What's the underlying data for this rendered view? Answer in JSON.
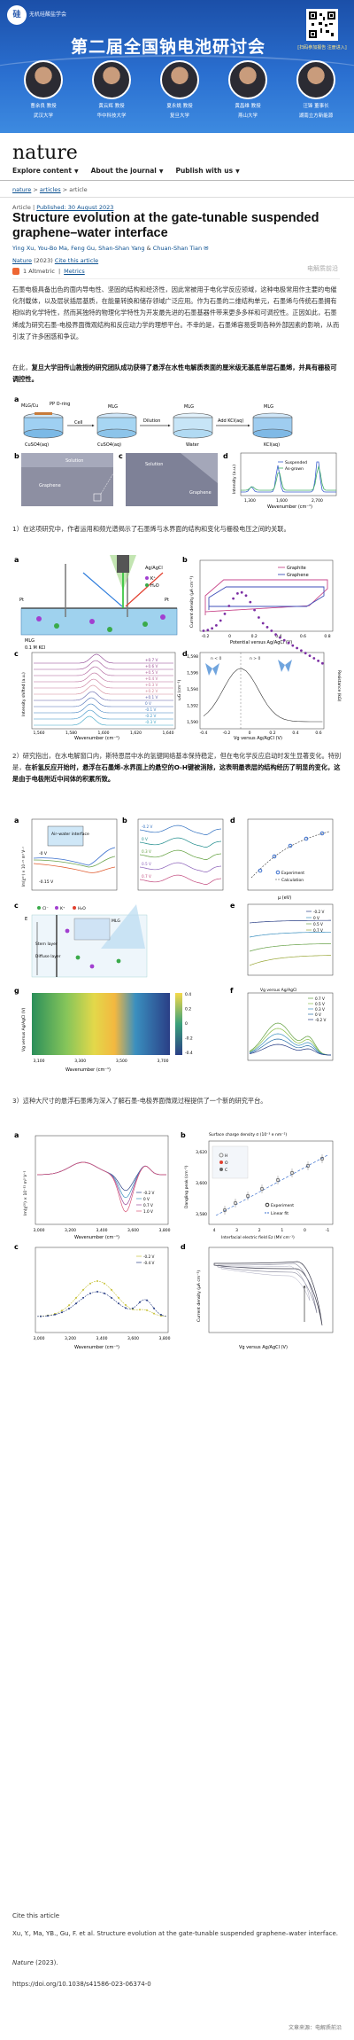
{
  "banner": {
    "org": "无机硅酸盐学会",
    "title": "第二届全国钠电池研讨会",
    "qr_caption": "[扫码参加报告 注册进入]",
    "speakers": [
      {
        "name": "曹余良 教授",
        "affiliation": "武汉大学"
      },
      {
        "name": "黄云辉 教授",
        "affiliation": "华中科技大学"
      },
      {
        "name": "夏永姚 教授",
        "affiliation": "复旦大学"
      },
      {
        "name": "黄昌维 教授",
        "affiliation": "燕山大学"
      },
      {
        "name": "汪锋 董事长",
        "affiliation": "湖南立方新能源"
      }
    ]
  },
  "nature": {
    "logo": "nature",
    "nav": [
      "Explore content",
      "About the journal",
      "Publish with us"
    ],
    "breadcrumbs": [
      "nature",
      "articles",
      "article"
    ],
    "article_type": "Article",
    "published": "Published: 30 August 2023",
    "title": "Structure evolution at the gate-tunable suspended graphene–water interface",
    "authors": [
      "Ying Xu",
      "You-Bo Ma",
      "Feng Gu",
      "Shan-Shan Yang",
      "Chuan-Shan Tian"
    ],
    "journal": "Nature",
    "year": "(2023)",
    "cite_link": "Cite this article",
    "altmetric": "1  Altmetric",
    "metrics": "Metrics",
    "watermark": "电解质前沿"
  },
  "paragraphs": {
    "p1": "石墨电极具备出色的面内导电性、坚固的结构和经济性，因此常被用于电化学反应领域，这种电极常用作主要的电催化剂载体，以及层状插层基质，在能量转换和储存领域广泛应用。作为石墨的二维结构单元，石墨烯与传统石墨拥有相似的化学特性，然而其独特的物理化学特性为开发最先进的石墨基器件带来更多多样和可调控性。正因如此，石墨烯成为研究石墨-电极界面微观结构和反应动力学的理想平台。不幸的是，石墨烯容易受到各种外部因素的影响，从而引发了许多困惑和争议。",
    "p2_normal": "在此，",
    "p2_bold": "复旦大学田传山教授的研究团队成功获得了悬浮在水性电解质表面的厘米级无基底单层石墨烯，并具有栅极可调控性。",
    "p3": "1）在这项研究中，作者运用和频光谱揭示了石墨烯与水界面的结构和变化与栅极电压之间的关联。",
    "p4_normal": "2）研究指出，在水电解窗口内，斯特恩层中水的氢键网络基本保持稳定，但在电化学反应启动时发生显著变化。特别是，",
    "p4_bold": "在析氢反应开始时，悬浮在石墨烯-水界面上的悬空的O-H键被消除，这表明最表层的结构经历了明显的变化，这是由于电极附近中间体的积累所致。",
    "p5": "3）這种大尺寸的悬浮石墨烯为深入了解石墨-电极界面微观过程提供了一个新的研究平台。"
  },
  "fig1": {
    "a_labels": [
      "MLG/Cu",
      "PP O-ring",
      "CuSO4(aq)",
      "Cell",
      "CuSO4(aq)",
      "MLG",
      "Dilution",
      "MLG",
      "Water",
      "Add KCl(aq)",
      "MLG",
      "KCl(aq)"
    ],
    "b_labels": [
      "Solution",
      "Graphene"
    ],
    "c_labels": [
      "Solution",
      "Graphene"
    ],
    "d_legend": [
      "Suspended",
      "As-grown"
    ],
    "d_xlabel": "Wavenumber (cm⁻¹)",
    "d_ylabel": "Intensity (a.u.)",
    "d_xticks": [
      "1,300",
      "1,600",
      "2,700"
    ],
    "d_peaks": [
      "D",
      "G",
      "2D"
    ]
  },
  "fig2": {
    "a_labels": [
      "Pt",
      "Ag/AgCl",
      "Pt",
      "MLG",
      "0.1 M KCl",
      "K⁺",
      "H₂O",
      "Cl⁻"
    ],
    "b_legend": [
      "Graphite",
      "Graphene"
    ],
    "b_xlabel": "Potential versus Ag/AgCl (V)",
    "b_ylabel": "Current density (μA cm⁻²)",
    "b_xticks": [
      "-0.2",
      "0",
      "0.2",
      "0.4",
      "0.6",
      "0.8"
    ],
    "c_xlabel": "Wavenumber (cm⁻¹)",
    "c_ylabel": "Intensity shifted (a.u.)",
    "c_xticks": [
      "1,560",
      "1,580",
      "1,600",
      "1,620",
      "1,640"
    ],
    "c_curves": [
      "+0.7 V",
      "+0.6 V",
      "+0.5 V",
      "+0.4 V",
      "+0.3 V",
      "+0.2 V",
      "+0.1 V",
      "0 V",
      "-0.1 V",
      "-0.2 V",
      "-0.3 V"
    ],
    "d_xlabel": "Vg versus Ag/AgCl (V)",
    "d_ylabel": "ωG (cm⁻¹)",
    "d_y2label": "Resistance (kΩ)",
    "d_xticks": [
      "-0.4",
      "-0.2",
      "0",
      "0.2",
      "0.4",
      "0.6"
    ],
    "d_yticks": [
      "1,590",
      "1,592",
      "1,594",
      "1,596",
      "1,598"
    ],
    "d_annot": [
      "n < 0",
      "n > 0"
    ]
  },
  "fig3": {
    "a_labels": [
      "Air–water interface",
      "-0 V",
      "-0.15 V"
    ],
    "a_ylabel": "Im(χ⁽²⁾) × 10⁻²¹ m² V⁻¹",
    "b_curves": [
      "-0.2 V",
      "0 V",
      "0.3 V",
      "0.5 V",
      "0.7 V"
    ],
    "d_legend": [
      "Experiment",
      "Calculation"
    ],
    "d_xlabel": "μ (eV)",
    "e_curves": [
      "-0.2 V",
      "0 V",
      "0.5 V",
      "0.7 V"
    ],
    "e_labels": [
      "Stern layer",
      "Diffuse layer",
      "Cl⁻",
      "K⁺",
      "H₂O",
      "MLG",
      "E"
    ],
    "f_curves": [
      "0.7 V",
      "0.5 V",
      "0.3 V",
      "0 V",
      "-0.2 V"
    ],
    "f_title": "Vg versus Ag/AgCl",
    "g_xlabel": "Wavenumber (cm⁻¹)",
    "g_ylabel": "Vg versus Ag/AgCl (V)",
    "g_scale": [
      "0.4",
      "0.2",
      "0",
      "-0.2",
      "-0.4"
    ],
    "xticks": [
      "3,100",
      "3,300",
      "3,500",
      "3,700"
    ]
  },
  "fig4": {
    "a_curves": [
      "-0.2 V",
      "0 V",
      "0.7 V",
      "1.0 V"
    ],
    "a_xlabel": "Wavenumber (cm⁻¹)",
    "a_ylabel": "Im(χ⁽²⁾) × 10⁻²¹ m² V⁻¹",
    "b_title": "Surface charge density σ (10⁻³ e nm⁻²)",
    "b_xlabel": "Interfacial electric field Ez (MV cm⁻¹)",
    "b_ylabel": "Dangling peak (cm⁻¹)",
    "b_legend": [
      "Experiment",
      "Linear fit"
    ],
    "b_yticks": [
      "3,620",
      "3,600",
      "3,580"
    ],
    "b_xticks": [
      "4",
      "3",
      "2",
      "1",
      "0",
      "-1"
    ],
    "b_inset": [
      "H",
      "O",
      "C"
    ],
    "c_curves": [
      "-0.2 V",
      "-0.4 V"
    ],
    "c_xlabel": "Wavenumber (cm⁻¹)",
    "d_xlabel": "Vg versus Ag/AgCl (V)",
    "d_ylabel": "Current density (μA cm⁻²)",
    "xticks": [
      "3,000",
      "3,200",
      "3,400",
      "3,600",
      "3,800"
    ]
  },
  "citation": {
    "heading": "Cite this article",
    "text": "Xu, Y., Ma, YB., Gu, F. et al. Structure evolution at the gate-tunable suspended graphene–water interface.",
    "journal": "Nature",
    "year": " (2023).",
    "doi": "https://doi.org/10.1038/s41586-023-06374-0",
    "source": "文章来源：电解质前沿"
  }
}
